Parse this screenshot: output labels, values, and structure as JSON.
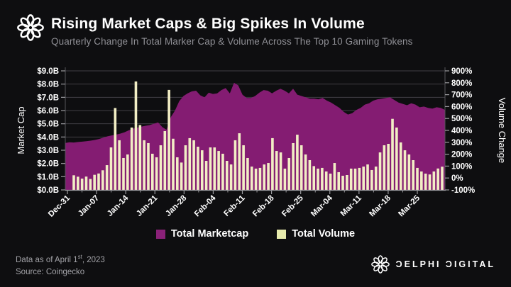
{
  "header": {
    "title": "Rising Market Caps & Big Spikes In Volume",
    "subtitle": "Quarterly Change In Total Marker Cap & Volume Across The Top 10 Gaming Tokens"
  },
  "legend": {
    "items": [
      {
        "label": "Total Marketcap",
        "color": "#8a2178"
      },
      {
        "label": "Total Volume",
        "color": "#e7ebad"
      }
    ]
  },
  "footer": {
    "asof_prefix": "Data as of April 1",
    "asof_sup": "st",
    "asof_suffix": ", 2023",
    "source": "Source: Coingecko",
    "brand_wordmark": "ƆELPHI ƆIGITAL"
  },
  "colors": {
    "background": "#0e0e10",
    "area_fill": "#841c72",
    "bar_fill": "#f2eec5",
    "gridline": "#403f44",
    "spine": "#9a9a9e",
    "axis_side_spine": "#55555a",
    "tick_label": "#ffffff",
    "axis_title": "#ffffff"
  },
  "chart_data": {
    "type": "combo (area + bar, dual axis)",
    "title": "Rising Market Caps & Big Spikes In Volume",
    "x_range": [
      "Dec-31",
      "Apr-01"
    ],
    "x_tick_labels": [
      "Dec-31",
      "Jan-07",
      "Jan-14",
      "Jan-21",
      "Jan-28",
      "Feb-04",
      "Feb-11",
      "Feb-18",
      "Feb-25",
      "Mar-04",
      "Mar-11",
      "Mar-18",
      "Mar-25"
    ],
    "left_axis": {
      "title": "Market Cap",
      "tick_labels": [
        "$9.0B",
        "$8.0B",
        "$7.0B",
        "$6.0B",
        "$5.0B",
        "$4.0B",
        "$3.0B",
        "$2.0B",
        "$1.0B",
        "$0.0B"
      ],
      "min": 0,
      "max": 9,
      "unit": "B USD"
    },
    "right_axis": {
      "title": "Volume Change",
      "tick_labels": [
        "900%",
        "800%",
        "700%",
        "600%",
        "500%",
        "400%",
        "300%",
        "200%",
        "100%",
        "0%",
        "-100%"
      ],
      "min": -100,
      "max": 900,
      "unit": "%"
    },
    "grid": true,
    "legend_position": "bottom",
    "series": [
      {
        "name": "Total Marketcap",
        "type": "area",
        "axis": "left",
        "unit": "$B",
        "color": "#841c72",
        "cadence": "daily",
        "values": [
          3.55,
          3.6,
          3.58,
          3.62,
          3.65,
          3.68,
          3.72,
          3.78,
          3.85,
          3.95,
          4.05,
          4.12,
          4.18,
          4.25,
          4.35,
          4.5,
          4.62,
          4.7,
          4.78,
          4.85,
          4.9,
          5.0,
          5.1,
          4.75,
          4.55,
          5.5,
          6.0,
          6.7,
          7.1,
          7.3,
          7.45,
          7.5,
          7.15,
          7.0,
          7.35,
          7.25,
          7.3,
          7.55,
          7.7,
          7.3,
          8.1,
          7.9,
          7.2,
          6.95,
          6.95,
          7.1,
          7.35,
          7.55,
          7.5,
          7.3,
          7.5,
          7.65,
          7.5,
          7.3,
          7.65,
          7.2,
          7.1,
          7.0,
          6.9,
          6.9,
          6.85,
          6.95,
          6.75,
          6.6,
          6.4,
          6.2,
          5.9,
          5.7,
          5.8,
          6.05,
          6.2,
          6.45,
          6.55,
          6.75,
          6.85,
          6.9,
          6.95,
          7.0,
          6.8,
          6.6,
          6.5,
          6.4,
          6.55,
          6.45,
          6.25,
          6.3,
          6.2,
          6.15,
          6.25,
          6.2,
          6.05
        ]
      },
      {
        "name": "Total Volume",
        "type": "bar",
        "axis": "right",
        "unit": "%",
        "color": "#f2eec5",
        "cadence": "daily",
        "baseline": -100,
        "values": [
          23,
          11,
          -5,
          12,
          -8,
          27,
          38,
          65,
          108,
          257,
          588,
          317,
          168,
          198,
          424,
          811,
          445,
          317,
          293,
          204,
          174,
          275,
          394,
          740,
          330,
          174,
          130,
          275,
          335,
          317,
          263,
          233,
          144,
          257,
          257,
          227,
          204,
          144,
          114,
          317,
          376,
          275,
          168,
          96,
          79,
          85,
          114,
          126,
          335,
          227,
          215,
          79,
          168,
          293,
          364,
          275,
          198,
          150,
          100,
          79,
          85,
          55,
          37,
          126,
          49,
          19,
          25,
          79,
          79,
          85,
          96,
          114,
          67,
          96,
          215,
          275,
          287,
          497,
          424,
          299,
          233,
          198,
          150,
          85,
          55,
          37,
          30,
          55,
          80,
          95
        ]
      }
    ]
  }
}
